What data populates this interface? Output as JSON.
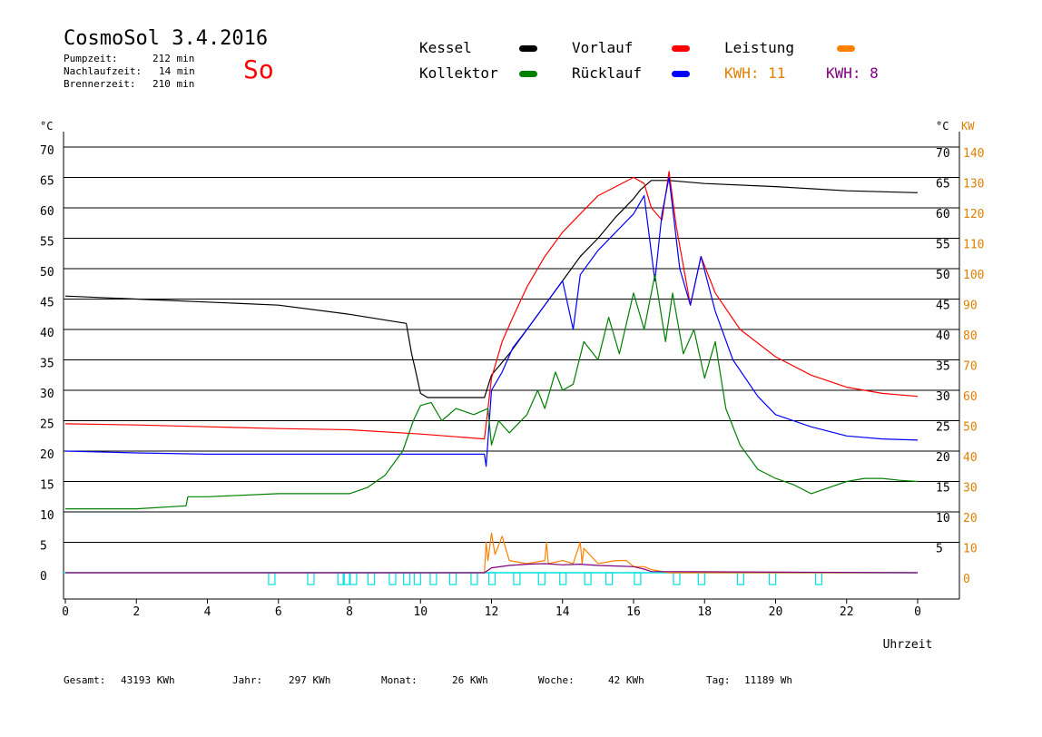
{
  "header": {
    "title": "CosmoSol 3.4.2016",
    "day": "So",
    "pump_label": "Pumpzeit:",
    "pump_value": "212 min",
    "nachlauf_label": "Nachlaufzeit:",
    "nachlauf_value": "14 min",
    "brenner_label": "Brennerzeit:",
    "brenner_value": "210 min"
  },
  "legend": [
    {
      "label": "Kessel",
      "color": "#000000"
    },
    {
      "label": "Vorlauf",
      "color": "#ff0000"
    },
    {
      "label": "Leistung",
      "color": "#ff8000"
    },
    {
      "label": "Kollektor",
      "color": "#008000"
    },
    {
      "label": "Rücklauf",
      "color": "#0000ff"
    }
  ],
  "kwh": [
    {
      "text": "KWH: 11",
      "color": "#e08000"
    },
    {
      "text": "KWH: 8",
      "color": "#800080"
    }
  ],
  "footer": {
    "gesamt_label": "Gesamt:",
    "gesamt_value": "43193 KWh",
    "jahr_label": "Jahr:",
    "jahr_value": "297 KWh",
    "monat_label": "Monat:",
    "monat_value": "26 KWh",
    "woche_label": "Woche:",
    "woche_value": "42 KWh",
    "tag_label": "Tag:",
    "tag_value": "11189 Wh"
  },
  "chart_data": {
    "type": "line",
    "xlabel": "Uhrzeit",
    "ylabel_left": "°C",
    "ylabel_right_1": "°C",
    "ylabel_right_2": "KW",
    "xlim": [
      0,
      24
    ],
    "ylim": [
      0,
      70
    ],
    "ylim_kw": [
      0,
      140
    ],
    "x_ticks": [
      "0",
      "2",
      "4",
      "6",
      "8",
      "10",
      "12",
      "14",
      "16",
      "18",
      "20",
      "22",
      "0"
    ],
    "y_ticks_left": [
      "0",
      "5",
      "10",
      "15",
      "20",
      "25",
      "30",
      "35",
      "40",
      "45",
      "50",
      "55",
      "60",
      "65",
      "70"
    ],
    "y_ticks_right": [
      "5",
      "10",
      "15",
      "20",
      "25",
      "30",
      "35",
      "40",
      "45",
      "50",
      "55",
      "60",
      "65",
      "70"
    ],
    "y_ticks_kw": [
      "0",
      "10",
      "20",
      "30",
      "40",
      "50",
      "60",
      "70",
      "80",
      "90",
      "100",
      "110",
      "120",
      "130",
      "140"
    ],
    "grid": true,
    "series": [
      {
        "name": "Kessel",
        "color": "#000000",
        "x": [
          0,
          2,
          4,
          6,
          8,
          9.6,
          9.75,
          9.85,
          10.0,
          10.2,
          11.8,
          12.0,
          12.5,
          13.0,
          13.5,
          14.0,
          14.5,
          15.0,
          15.5,
          16.0,
          16.2,
          16.5,
          17.0,
          18,
          20,
          22,
          24
        ],
        "y": [
          45.5,
          45,
          44.5,
          44,
          42.5,
          41,
          36,
          33.5,
          29.5,
          28.8,
          28.8,
          32.5,
          36,
          40,
          44,
          48,
          52,
          55,
          58.5,
          61.5,
          63,
          64.5,
          64.5,
          64,
          63.5,
          62.8,
          62.5
        ]
      },
      {
        "name": "Vorlauf",
        "color": "#ff0000",
        "x": [
          0,
          2,
          4,
          6,
          8,
          10,
          11.8,
          12.0,
          12.3,
          12.6,
          13.0,
          13.5,
          14.0,
          14.5,
          15.0,
          15.5,
          16.0,
          16.3,
          16.5,
          16.8,
          17.0,
          17.2,
          17.6,
          17.9,
          18.3,
          19,
          20,
          21,
          22,
          23,
          24
        ],
        "y": [
          24.5,
          24.3,
          24,
          23.7,
          23.5,
          22.8,
          22,
          32,
          38,
          42,
          47,
          52,
          56,
          59,
          62,
          63.5,
          65,
          64,
          60,
          58,
          66,
          57,
          44,
          52,
          46,
          40,
          35.5,
          32.5,
          30.5,
          29.5,
          29
        ]
      },
      {
        "name": "Rücklauf",
        "color": "#0000ff",
        "x": [
          0,
          2,
          4,
          6,
          8,
          10,
          11.8,
          11.85,
          12.0,
          12.3,
          12.6,
          13.0,
          13.5,
          14.0,
          14.3,
          14.5,
          15.0,
          15.5,
          16.0,
          16.3,
          16.6,
          16.8,
          17.0,
          17.3,
          17.6,
          17.9,
          18.3,
          18.8,
          19.5,
          20,
          21,
          22,
          23,
          24
        ],
        "y": [
          20,
          19.7,
          19.5,
          19.5,
          19.5,
          19.5,
          19.5,
          17.5,
          30,
          33,
          37,
          40,
          44,
          48,
          40,
          49,
          53,
          56,
          59,
          62,
          48,
          59,
          65,
          50,
          44,
          52,
          43,
          35,
          29,
          26,
          24,
          22.5,
          22,
          21.8
        ]
      },
      {
        "name": "Kollektor",
        "color": "#008000",
        "x": [
          0,
          2,
          3.4,
          3.45,
          4,
          6,
          8,
          8.5,
          9.0,
          9.5,
          9.8,
          10.0,
          10.3,
          10.6,
          11.0,
          11.5,
          11.9,
          12.0,
          12.2,
          12.5,
          13.0,
          13.3,
          13.5,
          13.8,
          14.0,
          14.3,
          14.6,
          15.0,
          15.3,
          15.6,
          16.0,
          16.3,
          16.6,
          16.9,
          17.1,
          17.4,
          17.7,
          18.0,
          18.3,
          18.6,
          19.0,
          19.5,
          20.0,
          20.5,
          21.0,
          21.5,
          22.0,
          22.5,
          23.0,
          23.5,
          24
        ],
        "y": [
          10.5,
          10.5,
          11,
          12.5,
          12.5,
          13,
          13,
          14,
          16,
          20,
          25,
          27.5,
          28,
          25,
          27,
          26,
          27,
          21,
          25,
          23,
          26,
          30,
          27,
          33,
          30,
          31,
          38,
          35,
          42,
          36,
          46,
          40,
          49,
          38,
          46,
          36,
          40,
          32,
          38,
          27,
          21,
          17,
          15.5,
          14.5,
          13,
          14,
          15,
          15.5,
          15.5,
          15.2,
          15
        ]
      },
      {
        "name": "Leistung",
        "color": "#ff8000",
        "x": [
          0,
          11.8,
          11.85,
          11.9,
          12.0,
          12.1,
          12.3,
          12.5,
          13.0,
          13.5,
          13.55,
          13.6,
          14.0,
          14.3,
          14.5,
          14.55,
          14.6,
          15.0,
          15.5,
          15.8,
          16.0,
          16.3,
          16.5,
          17.0,
          24
        ],
        "x_unit": "h",
        "y_unit": "KW",
        "y": [
          0,
          0,
          10,
          4,
          13,
          6,
          12,
          4,
          3,
          4,
          10,
          3,
          4,
          3,
          10,
          3,
          8,
          3,
          4,
          4,
          2,
          2,
          1,
          0,
          0
        ]
      },
      {
        "name": "KWH",
        "color": "#800080",
        "x": [
          0,
          11.8,
          12.0,
          12.5,
          13.0,
          13.5,
          14.0,
          14.5,
          15.0,
          15.5,
          16.0,
          16.3,
          16.5,
          24
        ],
        "y": [
          0,
          0,
          0.8,
          1.2,
          1.4,
          1.5,
          1.3,
          1.4,
          1.2,
          1.1,
          1.0,
          0.6,
          0.2,
          0
        ]
      }
    ],
    "pump_markers_x": [
      5.8,
      6.9,
      7.75,
      7.9,
      8.1,
      8.6,
      9.2,
      9.6,
      9.9,
      10.35,
      10.9,
      11.5,
      12.0,
      12.7,
      13.4,
      14.0,
      14.7,
      15.3,
      16.1,
      17.2,
      17.9,
      19.0,
      19.9,
      21.2
    ]
  }
}
